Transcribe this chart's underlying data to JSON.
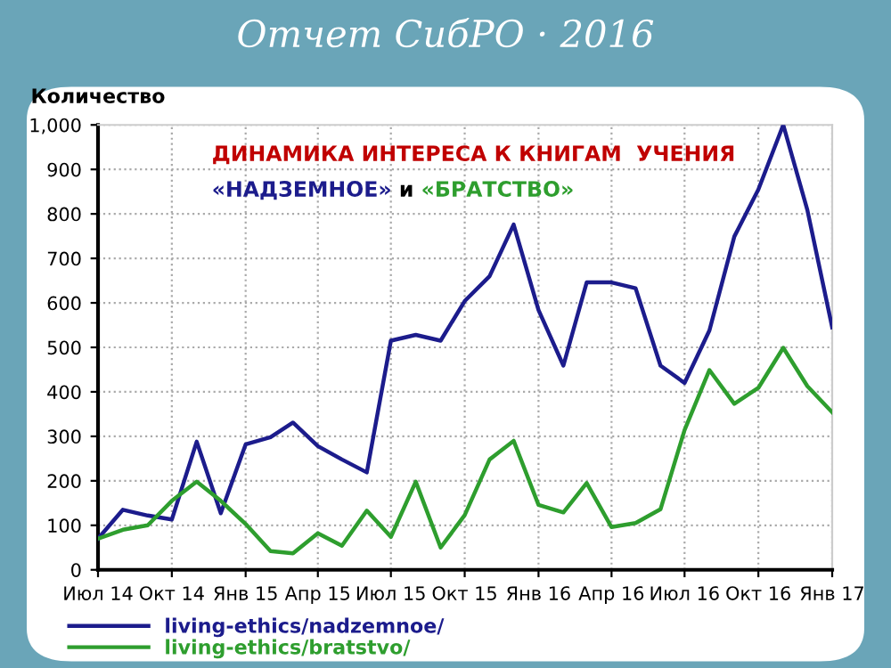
{
  "chart_data": {
    "type": "line",
    "title": "Отчет СибРО · 2016",
    "subtitle": "ДИНАМИКА ИНТЕРЕСА К КНИГАМ  УЧЕНИЯ",
    "annotations": [
      "«НАДЗЕМНОЕ»",
      "и",
      "«БРАТСТВО»"
    ],
    "ylabel": "Количество",
    "x": [
      "2014-07",
      "2014-08",
      "2014-09",
      "2014-10",
      "2014-11",
      "2014-12",
      "2015-01",
      "2015-02",
      "2015-03",
      "2015-04",
      "2015-05",
      "2015-06",
      "2015-07",
      "2015-08",
      "2015-09",
      "2015-10",
      "2015-11",
      "2015-12",
      "2016-01",
      "2016-02",
      "2016-03",
      "2016-04",
      "2016-05",
      "2016-06",
      "2016-07",
      "2016-08",
      "2016-09",
      "2016-10",
      "2016-11",
      "2016-12",
      "2017-01"
    ],
    "series": [
      {
        "name": "living-ethics/nadzemnoe/",
        "color": "#1c1c8c",
        "values": [
          70,
          135,
          122,
          113,
          288,
          127,
          282,
          298,
          331,
          278,
          248,
          219,
          515,
          528,
          515,
          604,
          660,
          776,
          584,
          459,
          646,
          646,
          633,
          459,
          420,
          538,
          749,
          855,
          1000,
          809,
          545
        ]
      },
      {
        "name": "living-ethics/bratstvo/",
        "color": "#2e9e2e",
        "values": [
          70,
          90,
          100,
          155,
          198,
          155,
          103,
          42,
          37,
          82,
          54,
          133,
          74,
          198,
          50,
          123,
          248,
          290,
          146,
          129,
          195,
          96,
          105,
          136,
          314,
          449,
          373,
          409,
          499,
          413,
          354
        ]
      }
    ],
    "xlim": [
      "2014-07",
      "2017-01"
    ],
    "xticks": [
      {
        "value": "2014-07",
        "label": "Июл 14"
      },
      {
        "value": "2014-10",
        "label": "Окт 14"
      },
      {
        "value": "2015-01",
        "label": "Янв 15"
      },
      {
        "value": "2015-04",
        "label": "Апр 15"
      },
      {
        "value": "2015-07",
        "label": "Июл 15"
      },
      {
        "value": "2015-10",
        "label": "Окт 15"
      },
      {
        "value": "2016-01",
        "label": "Янв 16"
      },
      {
        "value": "2016-04",
        "label": "Апр 16"
      },
      {
        "value": "2016-07",
        "label": "Июл 16"
      },
      {
        "value": "2016-10",
        "label": "Окт 16"
      },
      {
        "value": "2017-01",
        "label": "Янв 17"
      }
    ],
    "ylim": [
      0,
      1000
    ],
    "yticks": [
      0,
      100,
      200,
      300,
      400,
      500,
      600,
      700,
      800,
      900,
      {
        "value": 1000,
        "label": "1,000"
      }
    ],
    "grid": true,
    "legend": "bottom",
    "marker": "none",
    "line_style": "solid"
  }
}
